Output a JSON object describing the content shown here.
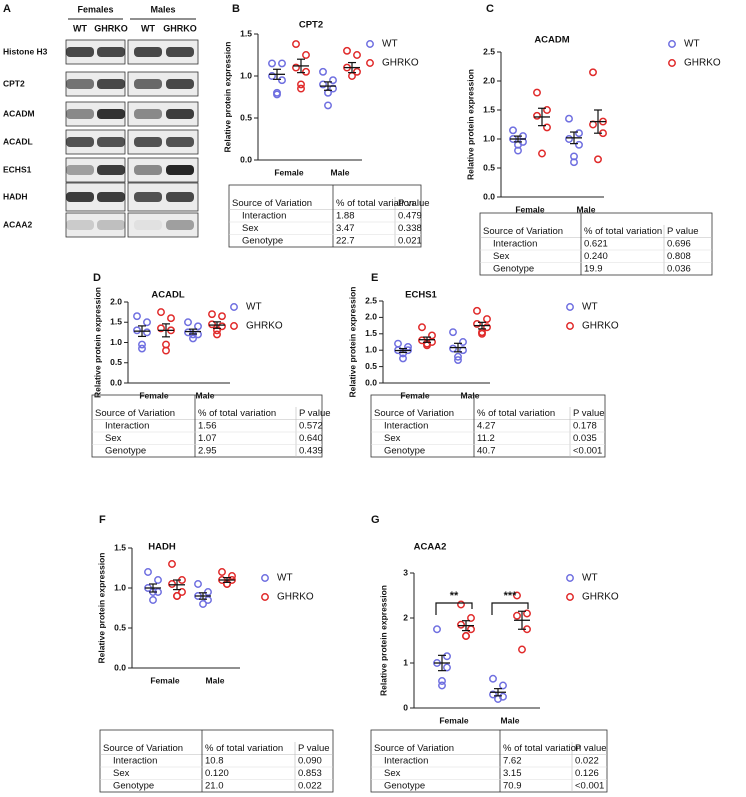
{
  "blot": {
    "panel": "A",
    "groups": [
      "Females",
      "Males"
    ],
    "lanes": [
      "WT",
      "GHRKO",
      "WT",
      "GHRKO"
    ],
    "proteins": [
      "Histone H3",
      "CPT2",
      "ACADM",
      "ACADL",
      "ECHS1",
      "HADH",
      "ACAA2"
    ]
  },
  "chart_data": [
    {
      "type": "dot",
      "panel": "B",
      "title": "CPT2",
      "ylabel": "Relative protein expression",
      "categories": [
        "Female",
        "Male"
      ],
      "ylim": [
        0,
        1.5
      ],
      "yticks": [
        {
          "value": 0,
          "label": "0.0"
        },
        {
          "value": 0.5,
          "label": "0.5"
        },
        {
          "value": 1,
          "label": "1.0"
        },
        {
          "value": 1.5,
          "label": "1.5"
        }
      ],
      "series": [
        {
          "name": "WT",
          "color": "#6f6fe0",
          "values": [
            [
              1.15,
              1.15,
              1.0,
              0.95,
              0.8,
              0.78
            ],
            [
              1.05,
              0.95,
              0.9,
              0.85,
              0.8,
              0.65
            ]
          ],
          "mean": [
            1.02,
            0.88
          ],
          "sem": [
            0.06,
            0.05
          ]
        },
        {
          "name": "GHRKO",
          "color": "#e02a2a",
          "values": [
            [
              1.38,
              1.25,
              1.1,
              1.05,
              0.9,
              0.85
            ],
            [
              1.3,
              1.25,
              1.1,
              1.05,
              1.0
            ]
          ],
          "mean": [
            1.12,
            1.1
          ],
          "sem": [
            0.08,
            0.06
          ]
        }
      ],
      "table": {
        "header": [
          "Source of Variation",
          "% of total variation",
          "P value"
        ],
        "rows": [
          [
            "Interaction",
            "1.88",
            "0.479"
          ],
          [
            "Sex",
            "3.47",
            "0.338"
          ],
          [
            "Genotype",
            "22.7",
            "0.021"
          ]
        ]
      }
    },
    {
      "type": "dot",
      "panel": "C",
      "title": "ACADM",
      "ylabel": "Relative protein expression",
      "categories": [
        "Female",
        "Male"
      ],
      "ylim": [
        0,
        2.5
      ],
      "yticks": [
        {
          "value": 0,
          "label": "0.0"
        },
        {
          "value": 0.5,
          "label": "0.5"
        },
        {
          "value": 1,
          "label": "1.0"
        },
        {
          "value": 1.5,
          "label": "1.5"
        },
        {
          "value": 2,
          "label": "2.0"
        },
        {
          "value": 2.5,
          "label": "2.5"
        }
      ],
      "series": [
        {
          "name": "WT",
          "color": "#6f6fe0",
          "values": [
            [
              1.15,
              1.05,
              1.0,
              0.95,
              0.9,
              0.8
            ],
            [
              1.35,
              1.1,
              1.0,
              0.9,
              0.7,
              0.6
            ]
          ],
          "mean": [
            1.0,
            1.02
          ],
          "sem": [
            0.05,
            0.1
          ]
        },
        {
          "name": "GHRKO",
          "color": "#e02a2a",
          "values": [
            [
              1.8,
              1.5,
              1.4,
              1.2,
              0.75
            ],
            [
              2.15,
              1.3,
              1.25,
              1.1,
              0.65
            ]
          ],
          "mean": [
            1.38,
            1.3
          ],
          "sem": [
            0.15,
            0.2
          ]
        }
      ],
      "table": {
        "header": [
          "Source of Variation",
          "% of total variation",
          "P value"
        ],
        "rows": [
          [
            "Interaction",
            "0.621",
            "0.696"
          ],
          [
            "Sex",
            "0.240",
            "0.808"
          ],
          [
            "Genotype",
            "19.9",
            "0.036"
          ]
        ]
      }
    },
    {
      "type": "dot",
      "panel": "D",
      "title": "ACADL",
      "ylabel": "Relative protein expression",
      "categories": [
        "Female",
        "Male"
      ],
      "ylim": [
        0,
        2
      ],
      "yticks": [
        {
          "value": 0,
          "label": "0.0"
        },
        {
          "value": 0.5,
          "label": "0.5"
        },
        {
          "value": 1,
          "label": "1.0"
        },
        {
          "value": 1.5,
          "label": "1.5"
        },
        {
          "value": 2,
          "label": "2.0"
        }
      ],
      "series": [
        {
          "name": "WT",
          "color": "#6f6fe0",
          "values": [
            [
              1.65,
              1.5,
              1.3,
              1.25,
              0.95,
              0.85
            ],
            [
              1.5,
              1.4,
              1.25,
              1.2,
              1.2,
              1.1
            ]
          ],
          "mean": [
            1.28,
            1.27
          ],
          "sem": [
            0.13,
            0.06
          ]
        },
        {
          "name": "GHRKO",
          "color": "#e02a2a",
          "values": [
            [
              1.75,
              1.6,
              1.35,
              1.3,
              0.95,
              0.8
            ],
            [
              1.7,
              1.65,
              1.45,
              1.4,
              1.3,
              1.2
            ]
          ],
          "mean": [
            1.3,
            1.43
          ],
          "sem": [
            0.16,
            0.08
          ]
        }
      ],
      "table": {
        "header": [
          "Source of Variation",
          "% of total variation",
          "P value"
        ],
        "rows": [
          [
            "Interaction",
            "1.56",
            "0.572"
          ],
          [
            "Sex",
            "1.07",
            "0.640"
          ],
          [
            "Genotype",
            "2.95",
            "0.439"
          ]
        ]
      }
    },
    {
      "type": "dot",
      "panel": "E",
      "title": "ECHS1",
      "ylabel": "Relative protein expression",
      "categories": [
        "Female",
        "Male"
      ],
      "ylim": [
        0,
        2.5
      ],
      "yticks": [
        {
          "value": 0,
          "label": "0.0"
        },
        {
          "value": 0.5,
          "label": "0.5"
        },
        {
          "value": 1,
          "label": "1.0"
        },
        {
          "value": 1.5,
          "label": "1.5"
        },
        {
          "value": 2,
          "label": "2.0"
        },
        {
          "value": 2.5,
          "label": "2.5"
        }
      ],
      "series": [
        {
          "name": "WT",
          "color": "#6f6fe0",
          "values": [
            [
              1.2,
              1.1,
              1.0,
              1.0,
              0.9,
              0.75
            ],
            [
              1.55,
              1.25,
              1.05,
              1.0,
              0.8,
              0.7
            ]
          ],
          "mean": [
            0.99,
            1.08
          ],
          "sem": [
            0.06,
            0.13
          ]
        },
        {
          "name": "GHRKO",
          "color": "#e02a2a",
          "values": [
            [
              1.7,
              1.45,
              1.3,
              1.25,
              1.2,
              1.15
            ],
            [
              2.2,
              1.95,
              1.8,
              1.7,
              1.55,
              1.5
            ]
          ],
          "mean": [
            1.32,
            1.75
          ],
          "sem": [
            0.08,
            0.1
          ]
        }
      ],
      "table": {
        "header": [
          "Source of Variation",
          "% of total variation",
          "P value"
        ],
        "rows": [
          [
            "Interaction",
            "4.27",
            "0.178"
          ],
          [
            "Sex",
            "11.2",
            "0.035"
          ],
          [
            "Genotype",
            "40.7",
            "<0.001"
          ]
        ]
      }
    },
    {
      "type": "dot",
      "panel": "F",
      "title": "HADH",
      "ylabel": "Relative protein expression",
      "categories": [
        "Female",
        "Male"
      ],
      "ylim": [
        0,
        1.5
      ],
      "yticks": [
        {
          "value": 0,
          "label": "0.0"
        },
        {
          "value": 0.5,
          "label": "0.5"
        },
        {
          "value": 1,
          "label": "1.0"
        },
        {
          "value": 1.5,
          "label": "1.5"
        }
      ],
      "series": [
        {
          "name": "WT",
          "color": "#6f6fe0",
          "values": [
            [
              1.2,
              1.1,
              1.0,
              0.95,
              0.95,
              0.85
            ],
            [
              1.05,
              0.95,
              0.9,
              0.85,
              0.8
            ]
          ],
          "mean": [
            1.0,
            0.9
          ],
          "sem": [
            0.05,
            0.04
          ]
        },
        {
          "name": "GHRKO",
          "color": "#e02a2a",
          "values": [
            [
              1.3,
              1.1,
              1.05,
              0.95,
              0.9,
              0.9
            ],
            [
              1.2,
              1.15,
              1.1,
              1.1,
              1.05,
              1.05
            ]
          ],
          "mean": [
            1.04,
            1.1
          ],
          "sem": [
            0.06,
            0.03
          ]
        }
      ],
      "table": {
        "header": [
          "Source of Variation",
          "% of total variation",
          "P value"
        ],
        "rows": [
          [
            "Interaction",
            "10.8",
            "0.090"
          ],
          [
            "Sex",
            "0.120",
            "0.853"
          ],
          [
            "Genotype",
            "21.0",
            "0.022"
          ]
        ]
      }
    },
    {
      "type": "dot",
      "panel": "G",
      "title": "ACAA2",
      "ylabel": "Relative protein expression",
      "categories": [
        "Female",
        "Male"
      ],
      "ylim": [
        0,
        3
      ],
      "yticks": [
        0,
        1,
        2,
        3
      ],
      "series": [
        {
          "name": "WT",
          "color": "#6f6fe0",
          "values": [
            [
              1.75,
              1.15,
              1.0,
              0.9,
              0.6,
              0.5
            ],
            [
              0.65,
              0.5,
              0.3,
              0.25,
              0.2
            ]
          ],
          "mean": [
            1.0,
            0.35
          ],
          "sem": [
            0.17,
            0.08
          ]
        },
        {
          "name": "GHRKO",
          "color": "#e02a2a",
          "values": [
            [
              2.3,
              2.0,
              1.85,
              1.75,
              1.6,
              1.6
            ],
            [
              2.5,
              2.1,
              2.05,
              1.75,
              1.3
            ]
          ],
          "mean": [
            1.83,
            1.95
          ],
          "sem": [
            0.11,
            0.2
          ]
        }
      ],
      "annotations": [
        "**",
        "***"
      ],
      "table": {
        "header": [
          "Source of Variation",
          "% of total variation",
          "P value"
        ],
        "rows": [
          [
            "Interaction",
            "7.62",
            "0.022"
          ],
          [
            "Sex",
            "3.15",
            "0.126"
          ],
          [
            "Genotype",
            "70.9",
            "<0.001"
          ]
        ]
      }
    }
  ]
}
